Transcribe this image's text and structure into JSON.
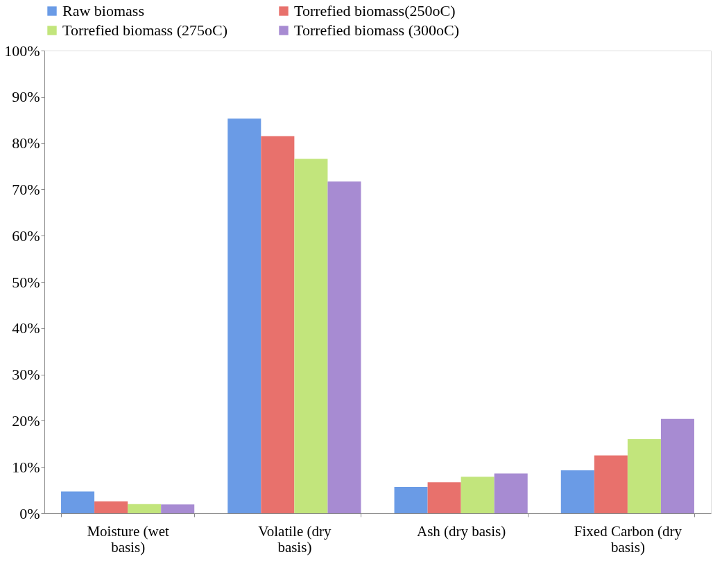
{
  "chart_data": {
    "type": "bar",
    "categories": [
      "Moisture (wet basis)",
      "Volatile (dry basis)",
      "Ash (dry basis)",
      "Fixed Carbon (dry basis)"
    ],
    "series": [
      {
        "name": "Raw biomass",
        "color": "#6a9be6",
        "values": [
          4.7,
          85.3,
          5.7,
          9.3
        ]
      },
      {
        "name": "Torrefied biomass(250oC)",
        "color": "#e8716c",
        "values": [
          2.6,
          81.5,
          6.7,
          12.5
        ]
      },
      {
        "name": "Torrefied biomass (275oC)",
        "color": "#c2e57c",
        "values": [
          2.0,
          76.6,
          7.9,
          16.0
        ]
      },
      {
        "name": "Torrefied biomass (300oC)",
        "color": "#a78bd2",
        "values": [
          1.9,
          71.7,
          8.6,
          20.4
        ]
      }
    ],
    "ylim": [
      0,
      100
    ],
    "yticks": [
      {
        "value": 0,
        "label": "0%"
      },
      {
        "value": 10,
        "label": "10%"
      },
      {
        "value": 20,
        "label": "20%"
      },
      {
        "value": 30,
        "label": "30%"
      },
      {
        "value": 40,
        "label": "40%"
      },
      {
        "value": 50,
        "label": "50%"
      },
      {
        "value": 60,
        "label": "60%"
      },
      {
        "value": 70,
        "label": "70%"
      },
      {
        "value": 80,
        "label": "80%"
      },
      {
        "value": 90,
        "label": "90%"
      },
      {
        "value": 100,
        "label": "100%"
      }
    ],
    "grid": false,
    "legend": "top"
  }
}
